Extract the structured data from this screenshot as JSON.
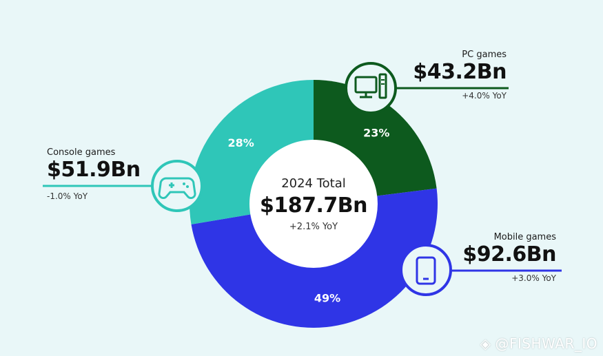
{
  "chart_data": {
    "type": "pie",
    "center": {
      "title": "2024 Total",
      "total": "$187.7Bn",
      "yoy": "+2.1% YoY"
    },
    "segments": [
      {
        "name": "PC games",
        "value": 43.2,
        "value_label": "$43.2Bn",
        "percent": 23,
        "percent_label": "23%",
        "yoy": "+4.0% YoY",
        "color": "#0d5a1e",
        "icon": "desktop-computer-icon"
      },
      {
        "name": "Mobile games",
        "value": 92.6,
        "value_label": "$92.6Bn",
        "percent": 49,
        "percent_label": "49%",
        "yoy": "+3.0% YoY",
        "color": "#2f35e6",
        "icon": "smartphone-icon"
      },
      {
        "name": "Console games",
        "value": 51.9,
        "value_label": "$51.9Bn",
        "percent": 28,
        "percent_label": "28%",
        "yoy": "-1.0% YoY",
        "color": "#2fc6b8",
        "icon": "gamepad-icon"
      }
    ]
  },
  "watermark": "@FISHWAR_IO",
  "colors": {
    "background": "#e9f7f8",
    "pc": "#0d5a1e",
    "mobile": "#2f35e6",
    "console": "#2fc6b8",
    "center": "#ffffff"
  }
}
